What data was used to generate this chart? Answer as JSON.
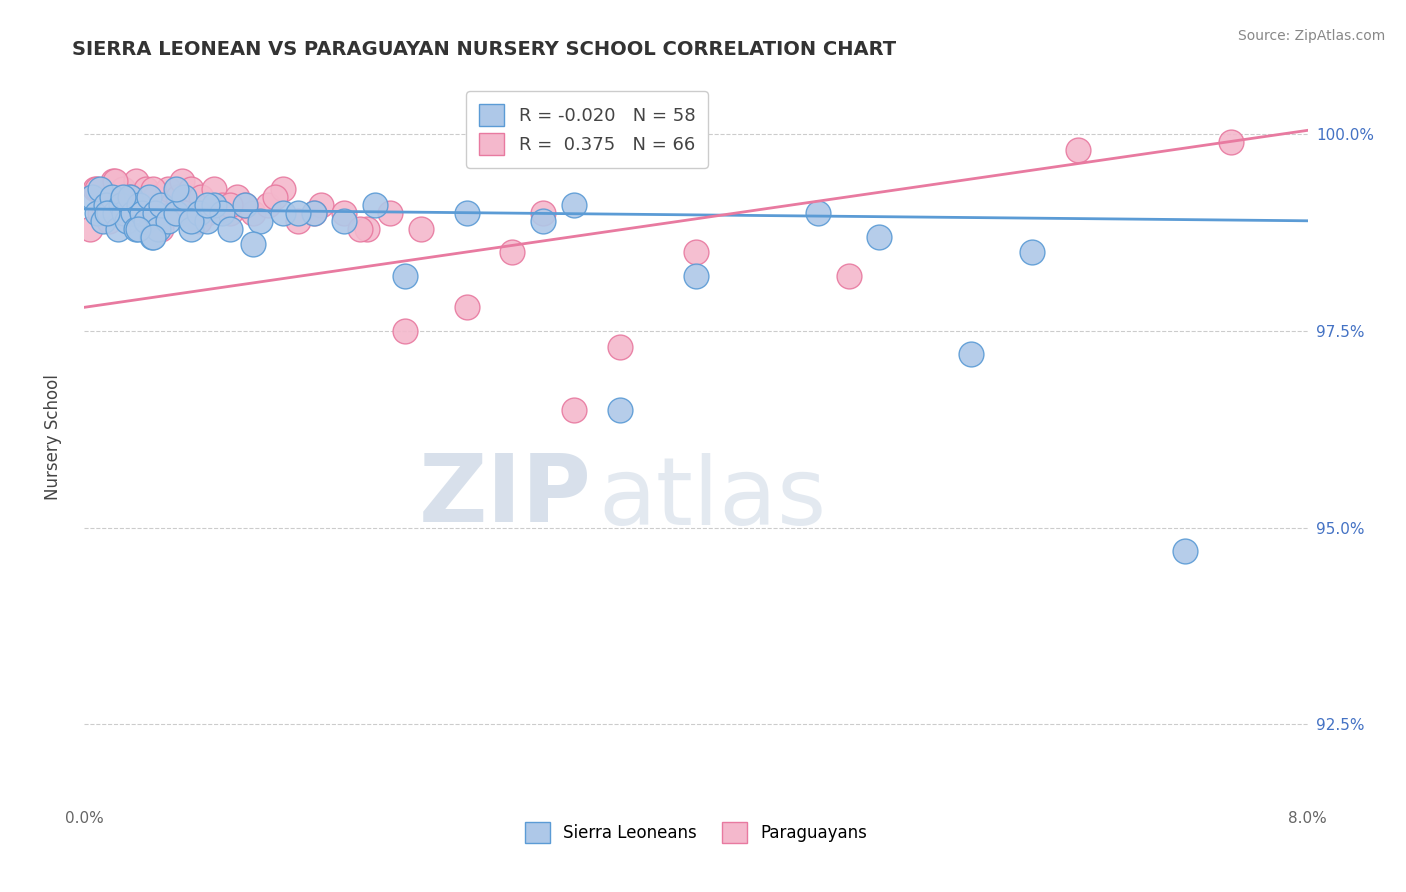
{
  "title": "SIERRA LEONEAN VS PARAGUAYAN NURSERY SCHOOL CORRELATION CHART",
  "source": "Source: ZipAtlas.com",
  "ylabel": "Nursery School",
  "xlim": [
    0.0,
    8.0
  ],
  "ylim": [
    91.5,
    100.8
  ],
  "ytick_values": [
    92.5,
    95.0,
    97.5,
    100.0
  ],
  "ytick_labels": [
    "92.5%",
    "95.0%",
    "97.5%",
    "100.0%"
  ],
  "sl_color": "#aec8e8",
  "sl_edge_color": "#5b9bd5",
  "par_color": "#f4b8cc",
  "par_edge_color": "#e87aa0",
  "trend_sl_color": "#5b9bd5",
  "trend_par_color": "#e87aa0",
  "sl_R": -0.02,
  "sl_N": 58,
  "par_R": 0.375,
  "par_N": 66,
  "sl_trend_y0": 99.05,
  "sl_trend_y1": 98.9,
  "par_trend_y0": 97.8,
  "par_trend_y1": 100.05,
  "watermark_zip": "ZIP",
  "watermark_atlas": "atlas",
  "background_color": "#ffffff",
  "grid_color": "#cccccc",
  "sl_points_x": [
    0.05,
    0.08,
    0.1,
    0.12,
    0.14,
    0.16,
    0.18,
    0.2,
    0.22,
    0.24,
    0.26,
    0.28,
    0.3,
    0.32,
    0.34,
    0.36,
    0.38,
    0.4,
    0.42,
    0.44,
    0.46,
    0.48,
    0.5,
    0.55,
    0.6,
    0.65,
    0.7,
    0.75,
    0.8,
    0.85,
    0.9,
    0.95,
    1.05,
    1.15,
    1.3,
    1.5,
    1.7,
    1.9,
    2.1,
    2.5,
    3.0,
    3.2,
    3.5,
    4.0,
    4.8,
    5.2,
    5.8,
    6.2,
    0.15,
    0.25,
    0.35,
    0.45,
    0.6,
    0.7,
    0.8,
    1.1,
    1.4,
    7.2
  ],
  "sl_points_y": [
    99.2,
    99.0,
    99.3,
    98.9,
    99.1,
    99.0,
    99.2,
    99.0,
    98.8,
    99.1,
    99.0,
    98.9,
    99.2,
    99.0,
    98.8,
    99.1,
    99.0,
    98.9,
    99.2,
    98.7,
    99.0,
    98.8,
    99.1,
    98.9,
    99.0,
    99.2,
    98.8,
    99.0,
    98.9,
    99.1,
    99.0,
    98.8,
    99.1,
    98.9,
    99.0,
    99.0,
    98.9,
    99.1,
    98.2,
    99.0,
    98.9,
    99.1,
    96.5,
    98.2,
    99.0,
    98.7,
    97.2,
    98.5,
    99.0,
    99.2,
    98.8,
    98.7,
    99.3,
    98.9,
    99.1,
    98.6,
    99.0,
    94.7
  ],
  "par_points_x": [
    0.04,
    0.07,
    0.1,
    0.13,
    0.16,
    0.19,
    0.22,
    0.25,
    0.28,
    0.31,
    0.34,
    0.37,
    0.4,
    0.43,
    0.46,
    0.49,
    0.52,
    0.55,
    0.58,
    0.61,
    0.64,
    0.67,
    0.7,
    0.73,
    0.76,
    0.8,
    0.85,
    0.9,
    0.95,
    1.0,
    1.1,
    1.2,
    1.3,
    1.4,
    1.55,
    1.7,
    1.85,
    2.0,
    2.2,
    2.5,
    3.0,
    3.5,
    4.0,
    5.0,
    6.5,
    7.5,
    0.15,
    0.25,
    0.35,
    0.45,
    0.6,
    0.75,
    1.05,
    1.25,
    1.5,
    1.8,
    2.1,
    2.8,
    0.08,
    0.12,
    0.2,
    0.3,
    0.5,
    0.65,
    0.95,
    3.2
  ],
  "par_points_y": [
    98.8,
    99.3,
    99.0,
    99.2,
    98.9,
    99.4,
    99.1,
    99.3,
    99.0,
    99.2,
    99.4,
    99.1,
    99.3,
    99.0,
    99.2,
    98.9,
    99.1,
    99.3,
    99.0,
    99.2,
    99.4,
    99.1,
    99.3,
    99.0,
    99.2,
    99.0,
    99.3,
    99.1,
    99.0,
    99.2,
    99.0,
    99.1,
    99.3,
    98.9,
    99.1,
    99.0,
    98.8,
    99.0,
    98.8,
    97.8,
    99.0,
    97.3,
    98.5,
    98.2,
    99.8,
    99.9,
    99.0,
    99.2,
    99.1,
    99.3,
    99.0,
    98.9,
    99.1,
    99.2,
    99.0,
    98.8,
    97.5,
    98.5,
    99.3,
    99.1,
    99.4,
    99.2,
    98.8,
    99.0,
    99.1,
    96.5
  ]
}
